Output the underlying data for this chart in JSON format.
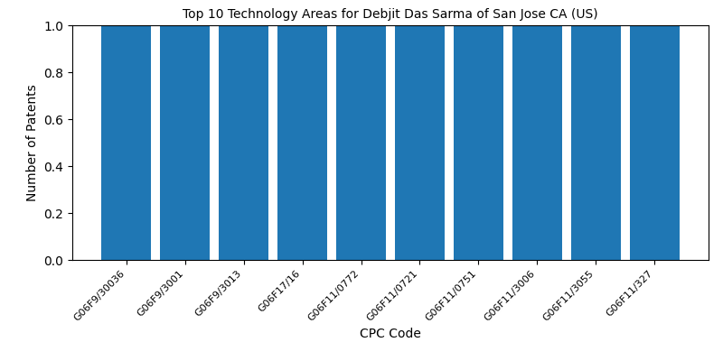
{
  "title": "Top 10 Technology Areas for Debjit Das Sarma of San Jose CA (US)",
  "xlabel": "CPC Code",
  "ylabel": "Number of Patents",
  "categories": [
    "G06F9/30036",
    "G06F9/3001",
    "G06F9/3013",
    "G06F17/16",
    "G06F11/0772",
    "G06F11/0721",
    "G06F11/0751",
    "G06F11/3006",
    "G06F11/3055",
    "G06F11/327"
  ],
  "values": [
    1,
    1,
    1,
    1,
    1,
    1,
    1,
    1,
    1,
    1
  ],
  "bar_color": "#1f77b4",
  "ylim": [
    0,
    1.0
  ],
  "yticks": [
    0.0,
    0.2,
    0.4,
    0.6,
    0.8,
    1.0
  ],
  "figsize": [
    8,
    4
  ],
  "dpi": 100,
  "bar_width": 0.85,
  "title_fontsize": 10,
  "label_fontsize": 10,
  "tick_fontsize": 8
}
